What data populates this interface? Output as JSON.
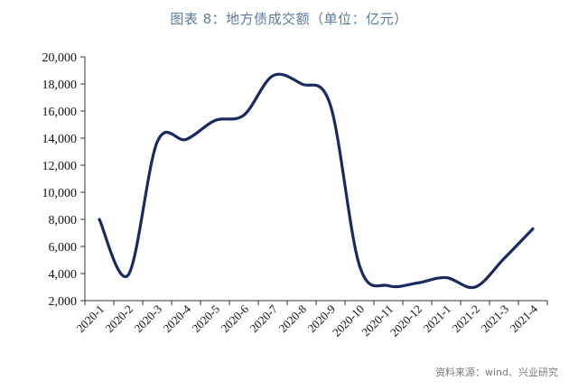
{
  "title": "图表 8：地方债成交额（单位：亿元）",
  "source": "资料来源：wind、兴业研究",
  "chart_data": {
    "type": "line",
    "categories": [
      "2020-1",
      "2020-2",
      "2020-3",
      "2020-4",
      "2020-5",
      "2020-6",
      "2020-7",
      "2020-8",
      "2020-9",
      "2020-10",
      "2020-11",
      "2020-12",
      "2021-1",
      "2021-2",
      "2021-3",
      "2021-4"
    ],
    "series": [
      {
        "values": [
          8000,
          3900,
          13700,
          13900,
          15300,
          15700,
          18600,
          18000,
          16400,
          4600,
          3100,
          3300,
          3700,
          3000,
          5100,
          7300
        ]
      }
    ],
    "yticks": [
      "2,000",
      "4,000",
      "6,000",
      "8,000",
      "10,000",
      "12,000",
      "14,000",
      "16,000",
      "18,000",
      "20,000"
    ],
    "ylim": [
      2000,
      20000
    ],
    "grid": false,
    "line_color": "#1b2a5e"
  }
}
